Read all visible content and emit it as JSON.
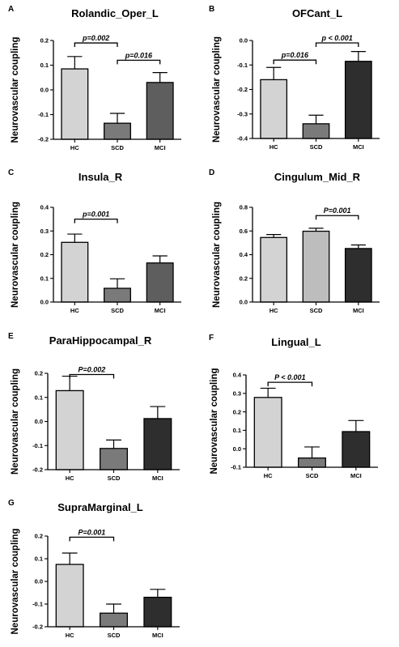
{
  "chart_data": [
    {
      "type": "bar",
      "panel": "A",
      "title": "Rolandic_Oper_L",
      "ylabel": "Neurovascular coupling",
      "categories": [
        "HC",
        "SCD",
        "MCI"
      ],
      "values": [
        0.085,
        -0.135,
        0.03
      ],
      "errors": [
        0.05,
        0.04,
        0.04
      ],
      "ylim": [
        -0.2,
        0.2
      ],
      "yticks": [
        {
          "v": -0.2,
          "t": "-0.2"
        },
        {
          "v": -0.1,
          "t": "-0.1"
        },
        {
          "v": 0.0,
          "t": "0.0"
        },
        {
          "v": 0.1,
          "t": "0.1"
        },
        {
          "v": 0.2,
          "t": "0.2"
        }
      ],
      "colors": [
        "#d3d3d3",
        "#7a7a7a",
        "#5e5e5e"
      ],
      "comparisons": [
        {
          "from": 0,
          "to": 1,
          "text": "p=0.002",
          "y": 0.19
        },
        {
          "from": 1,
          "to": 2,
          "text": "p=0.016",
          "y": 0.12
        }
      ]
    },
    {
      "type": "bar",
      "panel": "B",
      "title": "OFCant_L",
      "ylabel": "Neurovascular coupling",
      "categories": [
        "HC",
        "SCD",
        "MCI"
      ],
      "values": [
        -0.16,
        -0.34,
        -0.085
      ],
      "errors": [
        0.05,
        0.035,
        0.04
      ],
      "ylim": [
        -0.4,
        0.0
      ],
      "yticks": [
        {
          "v": -0.4,
          "t": "-0.4"
        },
        {
          "v": -0.3,
          "t": "-0.3"
        },
        {
          "v": -0.2,
          "t": "-0.2"
        },
        {
          "v": -0.1,
          "t": "-0.1"
        },
        {
          "v": 0.0,
          "t": "0.0"
        }
      ],
      "colors": [
        "#d3d3d3",
        "#7a7a7a",
        "#2e2e2e"
      ],
      "comparisons": [
        {
          "from": 0,
          "to": 1,
          "text": "p=0.016",
          "y": -0.08
        },
        {
          "from": 1,
          "to": 2,
          "text": "p < 0.001",
          "y": -0.01
        }
      ]
    },
    {
      "type": "bar",
      "panel": "C",
      "title": "Insula_R",
      "ylabel": "Neurovascular coupling",
      "categories": [
        "HC",
        "SCD",
        "MCI"
      ],
      "values": [
        0.252,
        0.058,
        0.165
      ],
      "errors": [
        0.035,
        0.04,
        0.03
      ],
      "ylim": [
        0.0,
        0.4
      ],
      "yticks": [
        {
          "v": 0.0,
          "t": "0.0"
        },
        {
          "v": 0.1,
          "t": "0.1"
        },
        {
          "v": 0.2,
          "t": "0.2"
        },
        {
          "v": 0.3,
          "t": "0.3"
        },
        {
          "v": 0.4,
          "t": "0.4"
        }
      ],
      "colors": [
        "#d3d3d3",
        "#7a7a7a",
        "#5e5e5e"
      ],
      "comparisons": [
        {
          "from": 0,
          "to": 1,
          "text": "p=0.001",
          "y": 0.35
        }
      ]
    },
    {
      "type": "bar",
      "panel": "D",
      "title": "Cingulum_Mid_R",
      "ylabel": "Neurovascular coupling",
      "categories": [
        "HC",
        "SCD",
        "MCI"
      ],
      "values": [
        0.545,
        0.598,
        0.452
      ],
      "errors": [
        0.025,
        0.025,
        0.03
      ],
      "ylim": [
        0.0,
        0.8
      ],
      "yticks": [
        {
          "v": 0.0,
          "t": "0.0"
        },
        {
          "v": 0.2,
          "t": "0.2"
        },
        {
          "v": 0.4,
          "t": "0.4"
        },
        {
          "v": 0.6,
          "t": "0.6"
        },
        {
          "v": 0.8,
          "t": "0.8"
        }
      ],
      "colors": [
        "#d3d3d3",
        "#bdbdbd",
        "#2e2e2e"
      ],
      "comparisons": [
        {
          "from": 1,
          "to": 2,
          "text": "P=0.001",
          "y": 0.73
        }
      ]
    },
    {
      "type": "bar",
      "panel": "E",
      "title": "ParaHippocampal_R",
      "ylabel": "Neurovascular coupling",
      "categories": [
        "HC",
        "SCD",
        "MCI"
      ],
      "values": [
        0.128,
        -0.112,
        0.012
      ],
      "errors": [
        0.06,
        0.035,
        0.05
      ],
      "ylim": [
        -0.2,
        0.2
      ],
      "yticks": [
        {
          "v": -0.2,
          "t": "-0.2"
        },
        {
          "v": -0.1,
          "t": "-0.1"
        },
        {
          "v": 0.0,
          "t": "0.0"
        },
        {
          "v": 0.1,
          "t": "0.1"
        },
        {
          "v": 0.2,
          "t": "0.2"
        }
      ],
      "colors": [
        "#d3d3d3",
        "#7a7a7a",
        "#2e2e2e"
      ],
      "comparisons": [
        {
          "from": 0,
          "to": 1,
          "text": "P=0.002",
          "y": 0.195
        }
      ]
    },
    {
      "type": "bar",
      "panel": "F",
      "title": "Lingual_L",
      "ylabel": "Neurovascular coupling",
      "categories": [
        "HC",
        "SCD",
        "MCI"
      ],
      "values": [
        0.278,
        -0.05,
        0.093
      ],
      "errors": [
        0.05,
        0.06,
        0.06
      ],
      "ylim": [
        -0.1,
        0.4
      ],
      "yticks": [
        {
          "v": -0.1,
          "t": "-0.1"
        },
        {
          "v": 0.0,
          "t": "0.0"
        },
        {
          "v": 0.1,
          "t": "0.1"
        },
        {
          "v": 0.2,
          "t": "0.2"
        },
        {
          "v": 0.3,
          "t": "0.3"
        },
        {
          "v": 0.4,
          "t": "0.4"
        }
      ],
      "colors": [
        "#d3d3d3",
        "#7a7a7a",
        "#2e2e2e"
      ],
      "comparisons": [
        {
          "from": 0,
          "to": 1,
          "text": "P < 0.001",
          "y": 0.36
        }
      ]
    },
    {
      "type": "bar",
      "panel": "G",
      "title": "SupraMarginal_L",
      "ylabel": "Neurovascular coupling",
      "categories": [
        "HC",
        "SCD",
        "MCI"
      ],
      "values": [
        0.075,
        -0.14,
        -0.07
      ],
      "errors": [
        0.05,
        0.04,
        0.035
      ],
      "ylim": [
        -0.2,
        0.2
      ],
      "yticks": [
        {
          "v": -0.2,
          "t": "-0.2"
        },
        {
          "v": -0.1,
          "t": "-0.1"
        },
        {
          "v": 0.0,
          "t": "0.0"
        },
        {
          "v": 0.1,
          "t": "0.1"
        },
        {
          "v": 0.2,
          "t": "0.2"
        }
      ],
      "colors": [
        "#d3d3d3",
        "#7a7a7a",
        "#2e2e2e"
      ],
      "comparisons": [
        {
          "from": 0,
          "to": 1,
          "text": "P=0.001",
          "y": 0.195
        }
      ]
    }
  ]
}
